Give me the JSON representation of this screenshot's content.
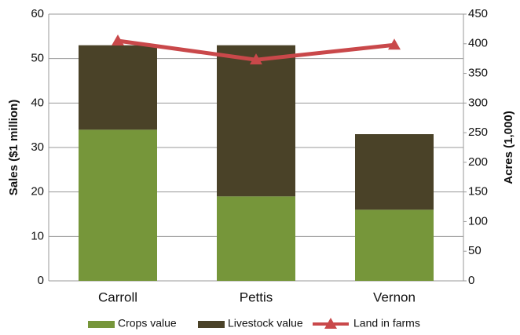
{
  "chart_data": {
    "type": "bar",
    "categories": [
      "Carroll",
      "Pettis",
      "Vernon"
    ],
    "series": [
      {
        "name": "Crops value",
        "color": "#76963a",
        "values": [
          34,
          19,
          16
        ]
      },
      {
        "name": "Livestock value",
        "color": "#4a4228",
        "values": [
          19,
          34,
          17
        ]
      },
      {
        "name": "Land in farms",
        "color": "#c9484a",
        "type": "line",
        "axis": "y2",
        "values": [
          405,
          373,
          398
        ]
      }
    ],
    "stacked": true,
    "ylabel": "Sales ($1 million)",
    "y2label": "Acres (1,000)",
    "ylim": [
      0,
      60
    ],
    "yticks": [
      0,
      10,
      20,
      30,
      40,
      50,
      60
    ],
    "y2lim": [
      0,
      450
    ],
    "y2ticks": [
      0,
      50,
      100,
      150,
      200,
      250,
      300,
      350,
      400,
      450
    ],
    "grid": true,
    "legend": "bottom"
  }
}
